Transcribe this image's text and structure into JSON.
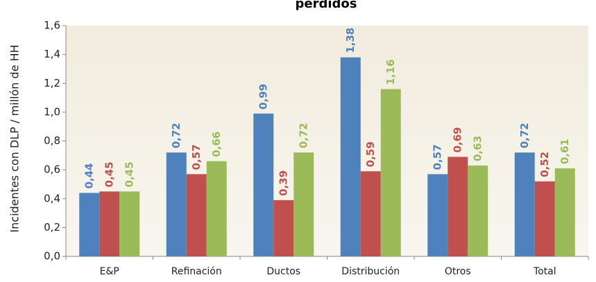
{
  "chart_data": {
    "type": "bar",
    "title": "perdidos",
    "y_label": "Incidentes con DLP / millón de HH",
    "categories": [
      "E&P",
      "Refinación",
      "Ductos",
      "Distribución",
      "Otros",
      "Total"
    ],
    "series": [
      {
        "color": "#4f81bd",
        "values": [
          0.44,
          0.72,
          0.99,
          1.38,
          0.57,
          0.72
        ],
        "value_labels": [
          "0,44",
          "0,72",
          "0,99",
          "1,38",
          "0,57",
          "0,72"
        ]
      },
      {
        "color": "#c0504d",
        "values": [
          0.45,
          0.57,
          0.39,
          0.59,
          0.69,
          0.52
        ],
        "value_labels": [
          "0,45",
          "0,57",
          "0,39",
          "0,59",
          "0,69",
          "0,52"
        ]
      },
      {
        "color": "#9bbb59",
        "values": [
          0.45,
          0.66,
          0.72,
          1.16,
          0.63,
          0.61
        ],
        "value_labels": [
          "0,45",
          "0,66",
          "0,72",
          "1,16",
          "0,63",
          "0,61"
        ]
      }
    ],
    "ylim": [
      0,
      1.6
    ],
    "yticks": [
      {
        "value": 0,
        "label": "0,0"
      },
      {
        "value": 0.2,
        "label": "0,2"
      },
      {
        "value": 0.4,
        "label": "0,4"
      },
      {
        "value": 0.6,
        "label": "0,6"
      },
      {
        "value": 0.8,
        "label": "0,8"
      },
      {
        "value": 1.0,
        "label": "1,0"
      },
      {
        "value": 1.2,
        "label": "1,2"
      },
      {
        "value": 1.4,
        "label": "1,4"
      },
      {
        "value": 1.6,
        "label": "1,6"
      }
    ],
    "grid": false
  }
}
